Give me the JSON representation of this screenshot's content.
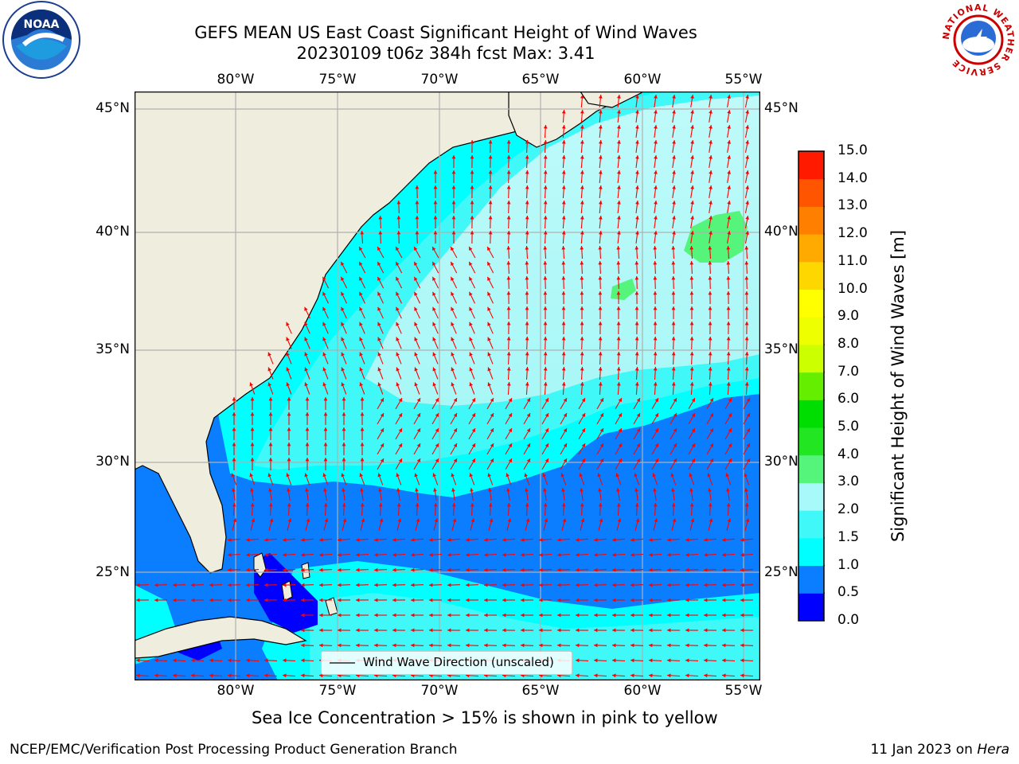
{
  "title": {
    "line1": "GEFS MEAN US East Coast Significant Height of Wind Waves",
    "line2": "20230109 t06z 384h fcst   Max: 3.41"
  },
  "logos": {
    "left": {
      "text": "NOAA"
    },
    "right": {
      "text": "NATIONAL WEATHER SERVICE"
    }
  },
  "axes": {
    "lon_labels": [
      "80°W",
      "75°W",
      "70°W",
      "65°W",
      "60°W",
      "55°W"
    ],
    "lat_labels": [
      "45°N",
      "40°N",
      "35°N",
      "30°N",
      "25°N"
    ]
  },
  "legend": {
    "label": "Wind Wave Direction (unscaled)"
  },
  "colorbar": {
    "title": "Significant Height of Wind Waves [m]",
    "ticks": [
      "0.0",
      "0.5",
      "1.0",
      "1.5",
      "2.0",
      "3.0",
      "4.0",
      "5.0",
      "6.0",
      "7.0",
      "8.0",
      "9.0",
      "10.0",
      "11.0",
      "12.0",
      "13.0",
      "14.0",
      "15.0"
    ],
    "colors": [
      "#0000ff",
      "#0a7eff",
      "#00ffff",
      "#40f8f8",
      "#a8fafa",
      "#55f57c",
      "#22e622",
      "#00dd00",
      "#66ee00",
      "#ccff00",
      "#eeff00",
      "#ffff00",
      "#ffd700",
      "#ffaa00",
      "#ff8000",
      "#ff5500",
      "#ff1a00"
    ]
  },
  "notes": {
    "sea_ice": "Sea Ice Concentration > 15% is shown in pink to yellow",
    "producer": "NCEP/EMC/Verification Post Processing Product Generation Branch",
    "date": "11 Jan 2023 on ",
    "host": "Hera"
  },
  "colors": {
    "land": "#efedde",
    "arrow": "#ff0000",
    "grid": "#b0b0b0"
  }
}
